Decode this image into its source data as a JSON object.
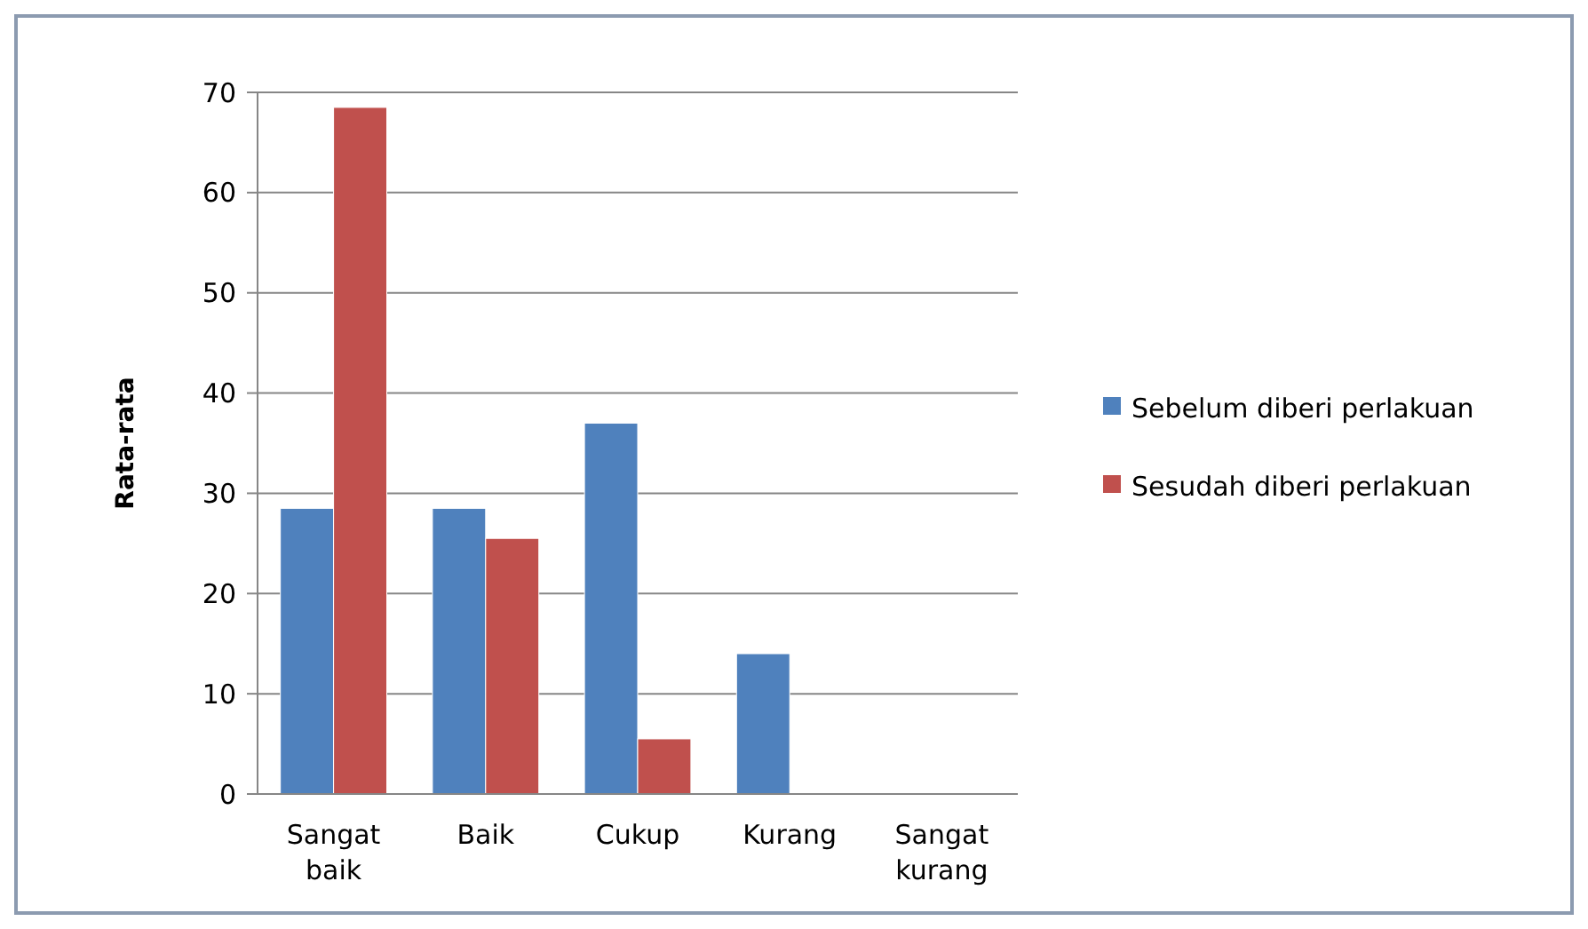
{
  "chart_data": {
    "type": "bar",
    "ylabel": "Rata-rata",
    "categories": [
      "Sangat baik",
      "Baik",
      "Cukup",
      "Kurang",
      "Sangat kurang"
    ],
    "series": [
      {
        "name": "Sebelum diberi perlakuan",
        "color": "#4f81bd",
        "values": [
          28.5,
          28.5,
          37,
          14,
          0
        ]
      },
      {
        "name": "Sesudah diberi perlakuan",
        "color": "#c0504d",
        "values": [
          68.5,
          25.5,
          5.5,
          0,
          0
        ]
      }
    ],
    "ylim": [
      0,
      70
    ],
    "yticks": [
      0,
      10,
      20,
      30,
      40,
      50,
      60,
      70
    ],
    "grid": "y",
    "legend": "right"
  }
}
